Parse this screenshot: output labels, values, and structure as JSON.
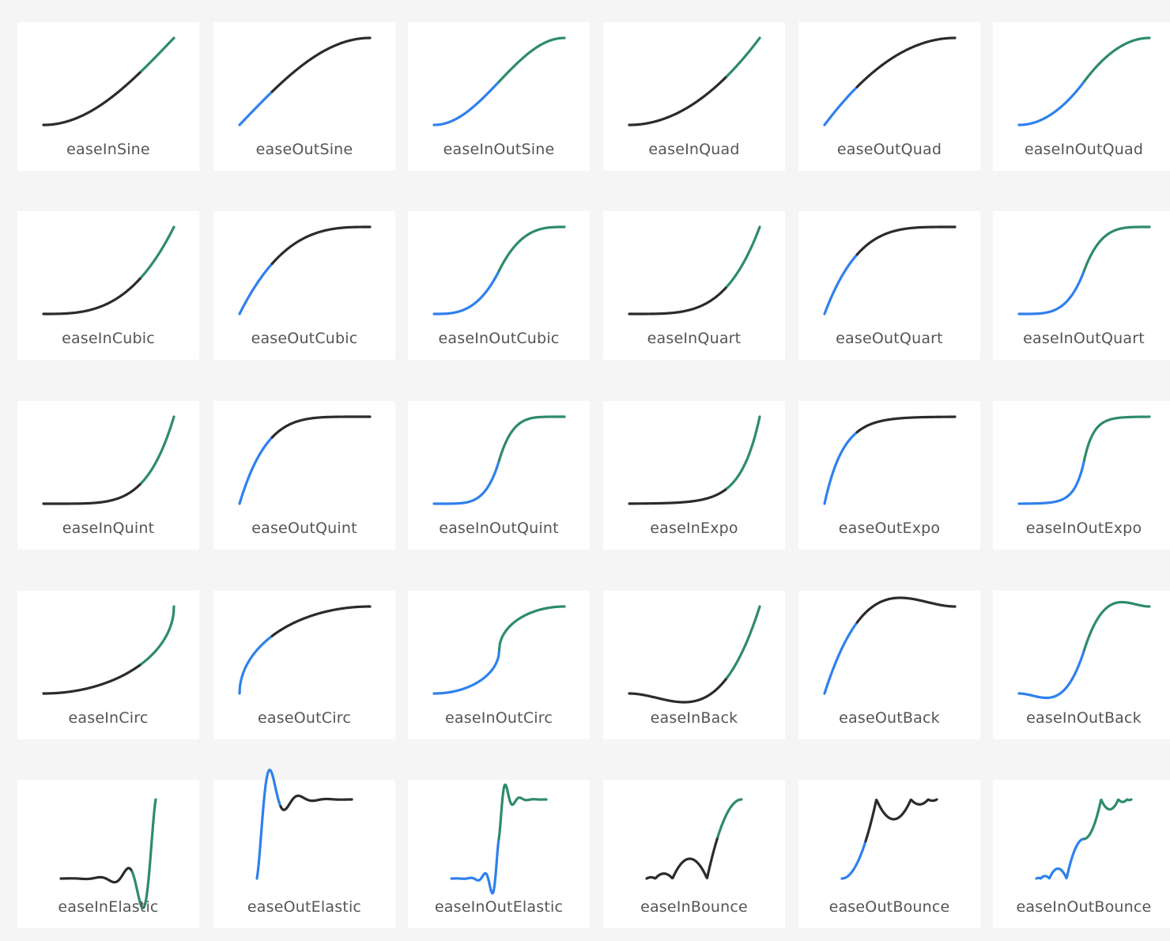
{
  "cards": [
    "easeInSine",
    "easeOutSine",
    "easeInOutSine",
    "easeInQuad",
    "easeOutQuad",
    "easeInOutQuad",
    "easeInCubic",
    "easeOutCubic",
    "easeInOutCubic",
    "easeInQuart",
    "easeOutQuart",
    "easeInOutQuart",
    "easeInQuint",
    "easeOutQuint",
    "easeInOutQuint",
    "easeInExpo",
    "easeOutExpo",
    "easeInOutExpo",
    "easeInCirc",
    "easeOutCirc",
    "easeInOutCirc",
    "easeInBack",
    "easeOutBack",
    "easeInOutBack",
    "easeInElastic",
    "easeOutElastic",
    "easeInOutElastic",
    "easeInBounce",
    "easeOutBounce",
    "easeInOutBounce"
  ]
}
